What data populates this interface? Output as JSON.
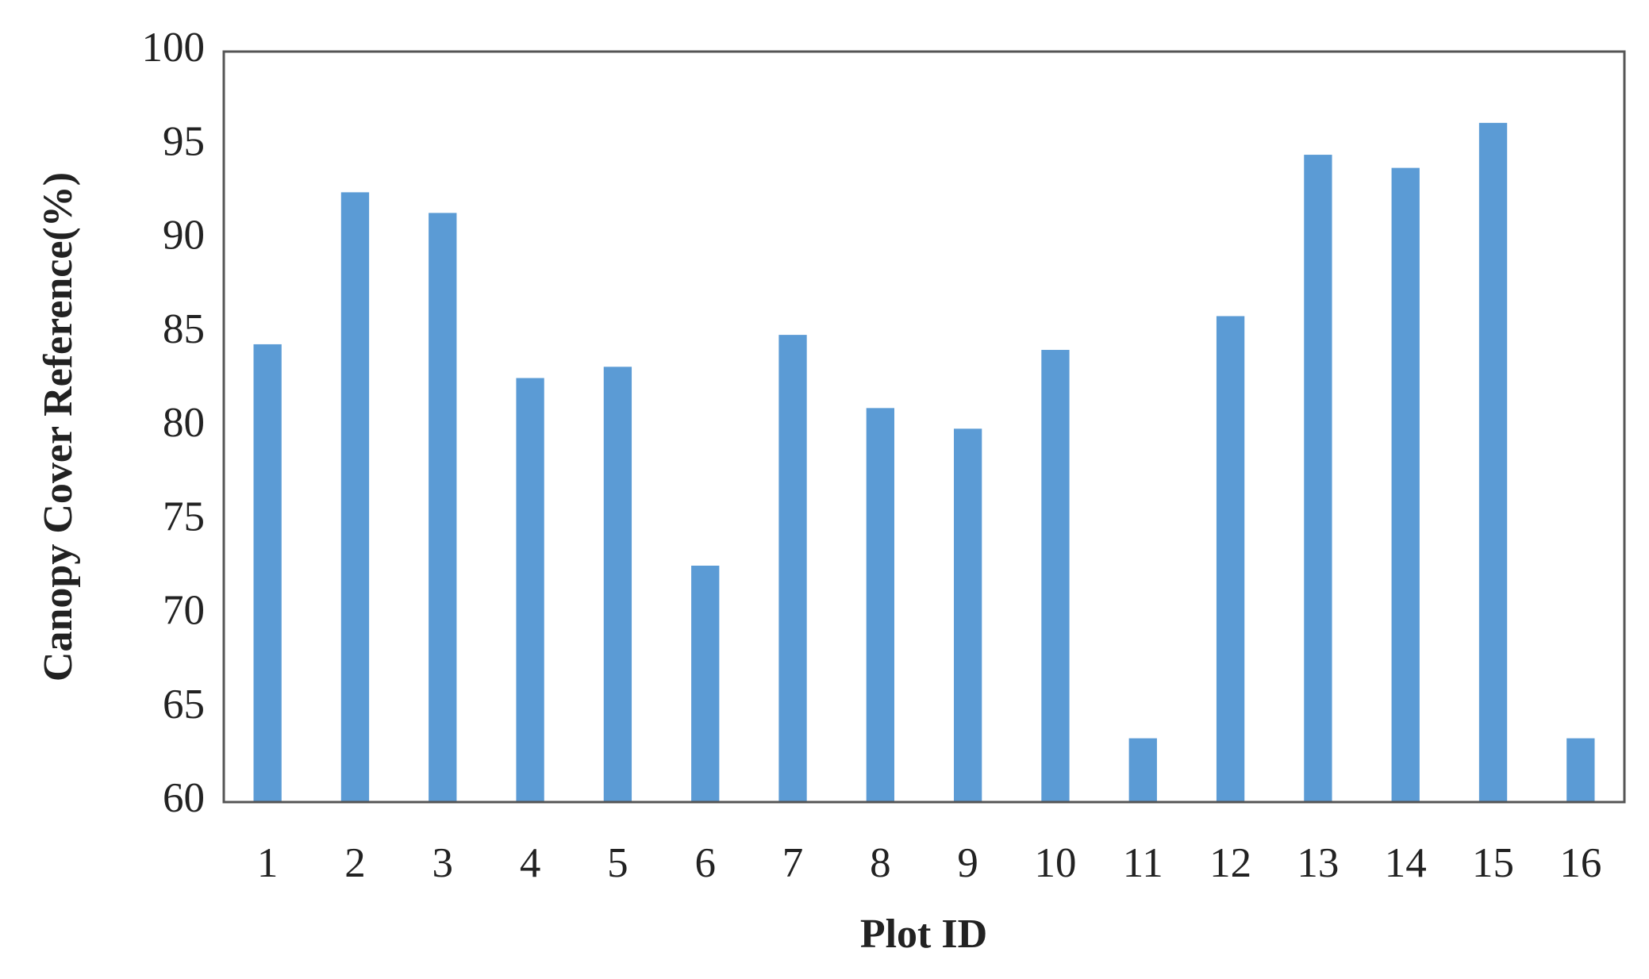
{
  "chart_data": {
    "type": "bar",
    "x_label": "Plot ID",
    "y_label": "Canopy Cover Reference(%)",
    "categories": [
      "1",
      "2",
      "3",
      "4",
      "5",
      "6",
      "7",
      "8",
      "9",
      "10",
      "11",
      "12",
      "13",
      "14",
      "15",
      "16"
    ],
    "values": [
      84.4,
      92.5,
      91.4,
      82.6,
      83.2,
      72.6,
      84.9,
      81.0,
      79.9,
      84.1,
      63.4,
      85.9,
      94.5,
      93.8,
      96.2,
      63.4
    ],
    "color": "#5b9bd5",
    "ylim": [
      60,
      100
    ],
    "yticks": [
      60,
      65,
      70,
      75,
      80,
      85,
      90,
      95,
      100
    ],
    "grid": false
  }
}
